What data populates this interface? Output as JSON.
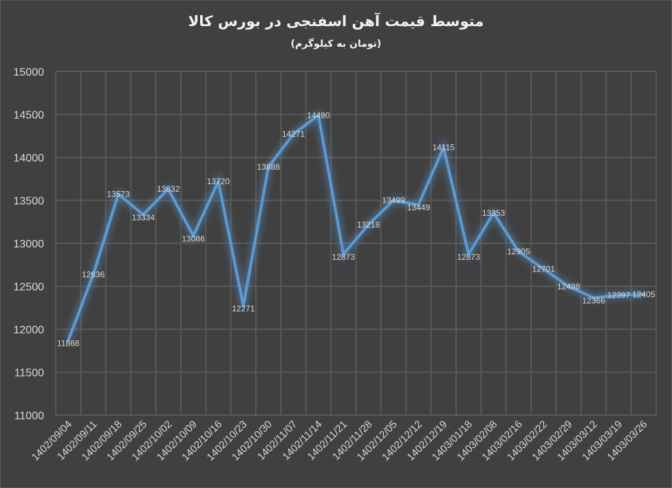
{
  "chart_data": {
    "type": "line",
    "title": "متوسط قیمت آهن اسفنجی در بورس کالا",
    "subtitle": "(تومان به کیلوگرم)",
    "xlabel": "",
    "ylabel": "",
    "ylim": [
      11000,
      15000
    ],
    "yticks": [
      11000,
      11500,
      12000,
      12500,
      13000,
      13500,
      14000,
      14500,
      15000
    ],
    "grid": true,
    "categories": [
      "1402/09/04",
      "1402/09/11",
      "1402/09/18",
      "1402/09/25",
      "1402/10/02",
      "1402/10/09",
      "1402/10/16",
      "1402/10/23",
      "1402/10/30",
      "1402/11/07",
      "1402/11/14",
      "1402/11/21",
      "1402/11/28",
      "1402/12/05",
      "1402/12/12",
      "1402/12/19",
      "1403/01/18",
      "1403/02/08",
      "1403/02/16",
      "1403/02/22",
      "1403/02/29",
      "1403/03/12",
      "1403/03/19",
      "1403/03/26"
    ],
    "values": [
      11868,
      12636,
      13573,
      13334,
      13632,
      13086,
      13720,
      12271,
      13888,
      14271,
      14490,
      12873,
      13218,
      13499,
      13449,
      14115,
      12873,
      13353,
      12905,
      12701,
      12498,
      12366,
      12397,
      12405
    ],
    "colors": {
      "line": "#5b9bd5",
      "background": "#404040",
      "grid": "#595959",
      "text": "#d9d9d9"
    }
  }
}
